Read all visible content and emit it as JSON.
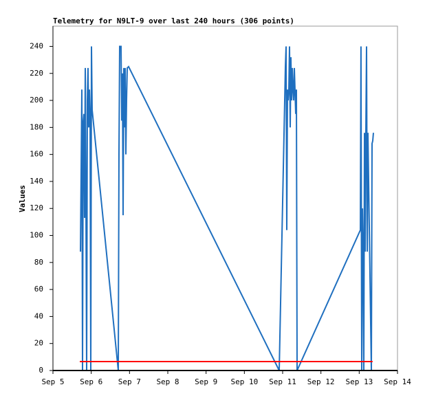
{
  "chart_data": {
    "type": "line",
    "title": "Telemetry for N9LT-9 over last 240 hours (306 points)",
    "ylabel": "Values",
    "xlim": [
      5,
      14
    ],
    "xticks": [
      {
        "value": 5,
        "label": "Sep 5"
      },
      {
        "value": 6,
        "label": "Sep 6"
      },
      {
        "value": 7,
        "label": "Sep 7"
      },
      {
        "value": 8,
        "label": "Sep 8"
      },
      {
        "value": 9,
        "label": "Sep 9"
      },
      {
        "value": 10,
        "label": "Sep 10"
      },
      {
        "value": 11,
        "label": "Sep 11"
      },
      {
        "value": 12,
        "label": "Sep 12"
      },
      {
        "value": 13,
        "label": "Sep 13"
      },
      {
        "value": 14,
        "label": "Sep 14"
      }
    ],
    "ylim": [
      0,
      255
    ],
    "yticks": [
      0,
      20,
      40,
      60,
      80,
      100,
      120,
      140,
      160,
      180,
      200,
      220,
      240
    ],
    "series": [
      {
        "color": "#1f6fbf",
        "x": [
          5.719,
          5.754,
          5.772,
          5.79,
          5.808,
          5.826,
          5.844,
          5.862,
          5.88,
          5.898,
          5.916,
          5.934,
          5.952,
          5.97,
          5.988,
          6.006,
          6.024,
          6.706,
          6.724,
          6.742,
          6.778,
          6.796,
          6.814,
          6.832,
          6.85,
          6.868,
          6.886,
          6.904,
          6.922,
          6.94,
          6.976,
          10.91,
          11.072,
          11.09,
          11.107,
          11.125,
          11.143,
          11.161,
          11.179,
          11.197,
          11.215,
          11.233,
          11.251,
          11.269,
          11.287,
          11.305,
          11.341,
          11.359,
          11.377,
          13.03,
          13.047,
          13.065,
          13.083,
          13.101,
          13.119,
          13.137,
          13.155,
          13.173,
          13.191,
          13.209,
          13.227,
          13.317,
          13.335,
          13.353,
          13.371
        ],
        "values": [
          88,
          208,
          0,
          184,
          190,
          113,
          224,
          120,
          0,
          200,
          224,
          180,
          208,
          190,
          0,
          240,
          193,
          0,
          160,
          240,
          240,
          185,
          220,
          115,
          224,
          180,
          224,
          160,
          200,
          224,
          225,
          0,
          225,
          240,
          104,
          208,
          200,
          208,
          240,
          180,
          232,
          200,
          224,
          208,
          200,
          224,
          190,
          208,
          0,
          104,
          240,
          0,
          120,
          88,
          0,
          176,
          88,
          176,
          240,
          88,
          176,
          0,
          168,
          170,
          176
        ]
      },
      {
        "color": "#ff0000",
        "x": [
          5.7,
          13.35
        ],
        "values": [
          6.6,
          6.6
        ]
      }
    ]
  }
}
